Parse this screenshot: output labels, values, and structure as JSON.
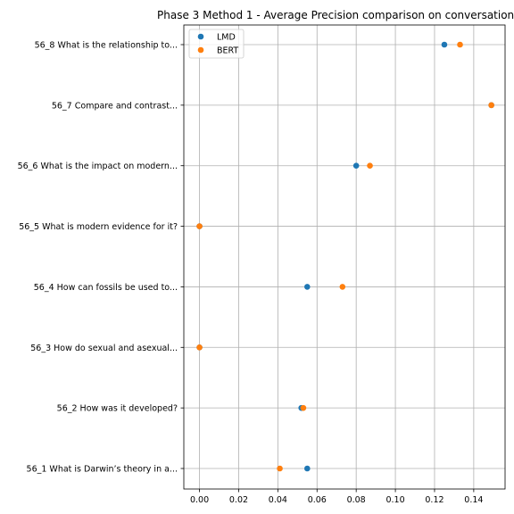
{
  "chart_data": {
    "type": "scatter",
    "title": "Phase 3 Method 1 - Average Precision comparison on conversation",
    "xlabel": "",
    "ylabel": "",
    "xlim": [
      -0.008,
      0.156
    ],
    "xticks": [
      "0.00",
      "0.02",
      "0.04",
      "0.06",
      "0.08",
      "0.10",
      "0.12",
      "0.14"
    ],
    "grid": true,
    "legend_position": "top-left",
    "categories": [
      "56_1 What is Darwin’s theory in a...",
      "56_2 How was it developed?",
      "56_3 How do sexual and asexual...",
      "56_4 How can fossils be used to...",
      "56_5 What is modern evidence for it?",
      "56_6 What is the impact on modern...",
      "56_7 Compare and contrast...",
      "56_8 What is the relationship to..."
    ],
    "series": [
      {
        "name": "LMD",
        "color": "#1f77b4",
        "values": [
          0.055,
          0.052,
          0.0,
          0.055,
          0.0,
          0.08,
          0.149,
          0.125
        ]
      },
      {
        "name": "BERT",
        "color": "#ff7f0e",
        "values": [
          0.041,
          0.053,
          0.0,
          0.073,
          0.0,
          0.087,
          0.149,
          0.133
        ]
      }
    ]
  }
}
